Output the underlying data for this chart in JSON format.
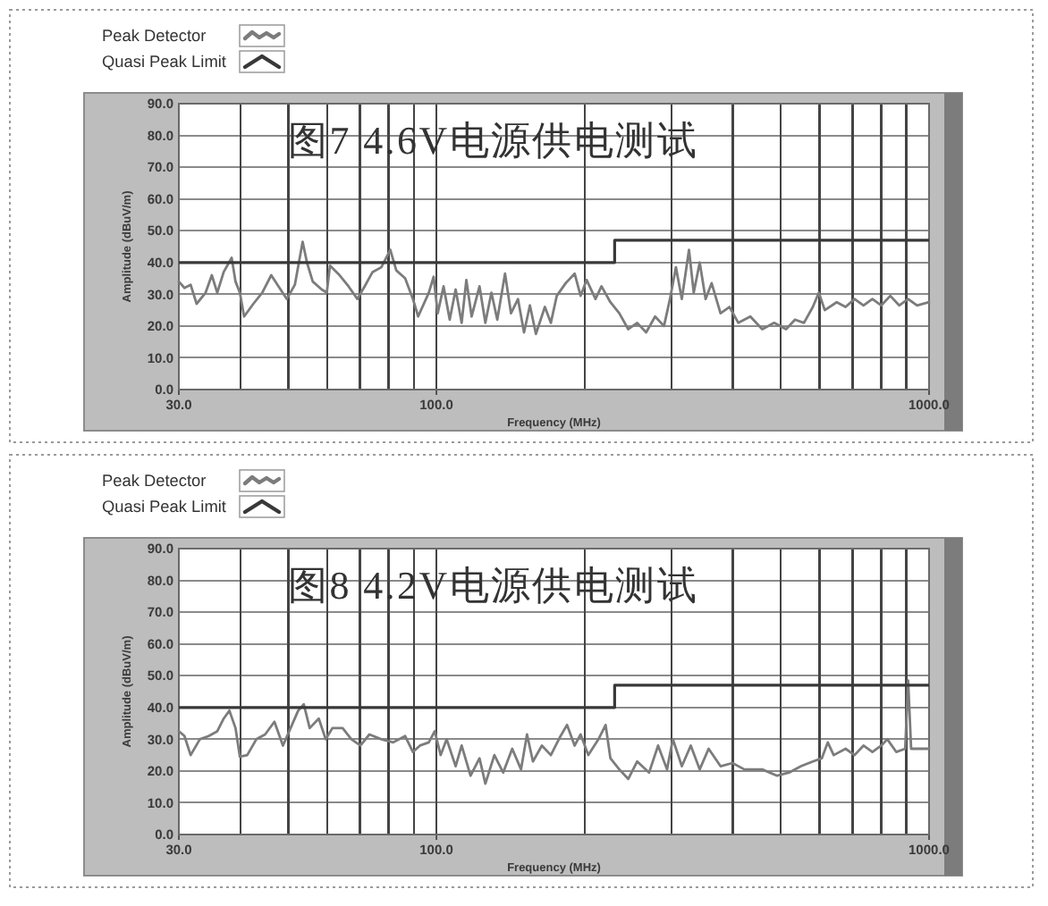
{
  "chart_data": [
    {
      "type": "line",
      "title": "图7 4.6V电源供电测试",
      "xlabel": "Frequency (MHz)",
      "ylabel": "Amplitude (dBuV/m)",
      "log": "x",
      "xlim": [
        30,
        1000
      ],
      "ylim": [
        0,
        90
      ],
      "xticks": [
        {
          "value": 30,
          "label": "30.0"
        },
        {
          "value": 40,
          "label": null
        },
        {
          "value": 50,
          "label": null
        },
        {
          "value": 60,
          "label": null
        },
        {
          "value": 70,
          "label": null
        },
        {
          "value": 80,
          "label": null
        },
        {
          "value": 90,
          "label": null
        },
        {
          "value": 100,
          "label": "100.0"
        },
        {
          "value": 200,
          "label": null
        },
        {
          "value": 300,
          "label": null
        },
        {
          "value": 400,
          "label": null
        },
        {
          "value": 500,
          "label": null
        },
        {
          "value": 600,
          "label": null
        },
        {
          "value": 700,
          "label": null
        },
        {
          "value": 800,
          "label": null
        },
        {
          "value": 900,
          "label": null
        },
        {
          "value": 1000,
          "label": "1000.0"
        }
      ],
      "yticks": [
        {
          "value": 0,
          "label": "0.0"
        },
        {
          "value": 10,
          "label": "10.0"
        },
        {
          "value": 20,
          "label": "20.0"
        },
        {
          "value": 30,
          "label": "30.0"
        },
        {
          "value": 40,
          "label": "40.0"
        },
        {
          "value": 50,
          "label": "50.0"
        },
        {
          "value": 60,
          "label": "60.0"
        },
        {
          "value": 70,
          "label": "70.0"
        },
        {
          "value": 80,
          "label": "80.0"
        },
        {
          "value": 90,
          "label": "90.0"
        }
      ],
      "grid": true,
      "legend": "top left",
      "series": [
        {
          "name": "Peak Detector",
          "color": "#7c7c7c",
          "x": [
            30,
            30.8,
            31.7,
            32.6,
            34.0,
            35.0,
            35.9,
            37.0,
            38.4,
            39.1,
            39.9,
            40.7,
            42.5,
            44.3,
            46.2,
            47.8,
            49.7,
            51.6,
            53.5,
            54.6,
            56.1,
            58.5,
            59.9,
            60.8,
            63.6,
            66.3,
            69.1,
            71.5,
            74.2,
            77.3,
            80.6,
            82.9,
            86.4,
            89.6,
            91.8,
            96.5,
            98.7,
            100.6,
            103.4,
            106.4,
            109.4,
            112.5,
            115,
            117.9,
            122.3,
            125.7,
            129.3,
            132.9,
            137.8,
            141.7,
            146.4,
            150.6,
            154.8,
            159.2,
            166,
            170.7,
            175.5,
            183,
            190.8,
            196.2,
            201.8,
            210.3,
            216.3,
            225.5,
            235.1,
            245.1,
            255.6,
            266.5,
            277.9,
            289.7,
            297.9,
            306.3,
            314.9,
            325.6,
            332.9,
            342.3,
            351.9,
            361.9,
            377.3,
            393.4,
            410.1,
            433.7,
            458.5,
            484.8,
            512.5,
            534.4,
            557.2,
            580.9,
            597.3,
            614.2,
            649.3,
            677,
            705.9,
            736,
            767.3,
            800,
            834.2,
            869.7,
            906.8,
            945.5,
            1000
          ],
          "values": [
            34,
            32,
            33,
            27,
            30.5,
            36,
            30.5,
            37,
            41.5,
            34,
            30.5,
            23,
            27,
            30.5,
            36,
            32.5,
            28.5,
            33,
            46.5,
            40,
            34,
            31.5,
            30.5,
            39,
            36,
            32.5,
            28.5,
            32.5,
            37,
            38.5,
            44,
            37.5,
            35,
            28.5,
            23,
            30.5,
            35.5,
            24,
            32.5,
            22,
            31.5,
            21,
            34.5,
            23,
            32.5,
            21,
            30.5,
            22,
            36.5,
            24,
            28.5,
            18,
            26.5,
            17.5,
            26,
            21,
            29.5,
            33.5,
            36.5,
            29.5,
            34.5,
            28.5,
            32.5,
            27.5,
            24,
            19,
            21,
            18,
            23,
            20,
            28.5,
            38.5,
            28.5,
            44,
            30.5,
            40,
            28.5,
            33.5,
            24,
            26,
            21,
            23,
            19,
            21,
            19,
            22,
            21,
            26,
            30.5,
            25,
            27.5,
            26,
            28.5,
            26.5,
            28.5,
            26.5,
            29.5,
            26.5,
            28.5,
            26.5,
            27.5
          ]
        },
        {
          "name": "Quasi Peak Limit",
          "color": "#383838",
          "type": "step",
          "x": [
            30,
            230,
            1000
          ],
          "values": [
            40,
            47,
            47
          ]
        }
      ]
    },
    {
      "type": "line",
      "title": "图8 4.2V电源供电测试",
      "xlabel": "Frequency (MHz)",
      "ylabel": "Amplitude (dBuV/m)",
      "log": "x",
      "xlim": [
        30,
        1000
      ],
      "ylim": [
        0,
        90
      ],
      "xticks": [
        {
          "value": 30,
          "label": "30.0"
        },
        {
          "value": 40,
          "label": null
        },
        {
          "value": 50,
          "label": null
        },
        {
          "value": 60,
          "label": null
        },
        {
          "value": 70,
          "label": null
        },
        {
          "value": 80,
          "label": null
        },
        {
          "value": 90,
          "label": null
        },
        {
          "value": 100,
          "label": "100.0"
        },
        {
          "value": 200,
          "label": null
        },
        {
          "value": 300,
          "label": null
        },
        {
          "value": 400,
          "label": null
        },
        {
          "value": 500,
          "label": null
        },
        {
          "value": 600,
          "label": null
        },
        {
          "value": 700,
          "label": null
        },
        {
          "value": 800,
          "label": null
        },
        {
          "value": 900,
          "label": null
        },
        {
          "value": 1000,
          "label": "1000.0"
        }
      ],
      "yticks": [
        {
          "value": 0,
          "label": "0.0"
        },
        {
          "value": 10,
          "label": "10.0"
        },
        {
          "value": 20,
          "label": "20.0"
        },
        {
          "value": 30,
          "label": "30.0"
        },
        {
          "value": 40,
          "label": "40.0"
        },
        {
          "value": 50,
          "label": "50.0"
        },
        {
          "value": 60,
          "label": "60.0"
        },
        {
          "value": 70,
          "label": "70.0"
        },
        {
          "value": 80,
          "label": "80.0"
        },
        {
          "value": 90,
          "label": "90.0"
        }
      ],
      "grid": true,
      "legend": "top left",
      "series": [
        {
          "name": "Peak Detector",
          "color": "#7c7c7c",
          "x": [
            30,
            30.8,
            31.7,
            33.1,
            34.5,
            35.9,
            37.0,
            38.0,
            39.1,
            39.9,
            41.3,
            43.1,
            44.9,
            46.9,
            48.8,
            50.9,
            52.4,
            53.8,
            55.3,
            57.7,
            59.6,
            61.5,
            64.5,
            67.2,
            70.1,
            73.1,
            77.3,
            81.7,
            86.4,
            89.6,
            92.6,
            96.5,
            99.2,
            102,
            104.9,
            109.4,
            112.5,
            117.3,
            122.3,
            125.7,
            131.1,
            136.6,
            142.5,
            148.5,
            152.7,
            157,
            163.7,
            170.7,
            177.9,
            184.1,
            190.8,
            196.2,
            203.4,
            213.3,
            220.5,
            225.5,
            235.1,
            245.1,
            255.6,
            270.2,
            281.8,
            293.8,
            302,
            314.9,
            328.3,
            342.3,
            356.9,
            377.3,
            398.9,
            421.8,
            458.5,
            491.6,
            519.7,
            549.5,
            580.9,
            605.7,
            622.8,
            640.4,
            677,
            705.9,
            736,
            767.3,
            800,
            822.6,
            857.7,
            894.3,
            906.8,
            919.6,
            958.8,
            1000
          ],
          "values": [
            32.5,
            31,
            25,
            30,
            31,
            32.5,
            36.5,
            39,
            33.5,
            24.5,
            25,
            30,
            31.5,
            35.5,
            28,
            34.5,
            39,
            41,
            33.5,
            36.5,
            30,
            33.5,
            33.5,
            30,
            28,
            31.5,
            30,
            29,
            31,
            26,
            28,
            29,
            32.5,
            25,
            30,
            21.5,
            28,
            18.5,
            24,
            16,
            25,
            19.5,
            27,
            20.5,
            31.5,
            23,
            28,
            25,
            30.5,
            34.5,
            28,
            31.5,
            25,
            30,
            34.5,
            24,
            20.5,
            17.5,
            23,
            19.5,
            28,
            20.5,
            30,
            21.5,
            28,
            20.5,
            27,
            21.5,
            22.5,
            20.5,
            20.5,
            18.5,
            19.5,
            21.5,
            23,
            24,
            29,
            25,
            27,
            25,
            28,
            26,
            28,
            30,
            26,
            27,
            48.5,
            27,
            27,
            27
          ]
        },
        {
          "name": "Quasi Peak Limit",
          "color": "#383838",
          "type": "step",
          "x": [
            30,
            230,
            1000
          ],
          "values": [
            40,
            47,
            47
          ]
        }
      ]
    }
  ]
}
